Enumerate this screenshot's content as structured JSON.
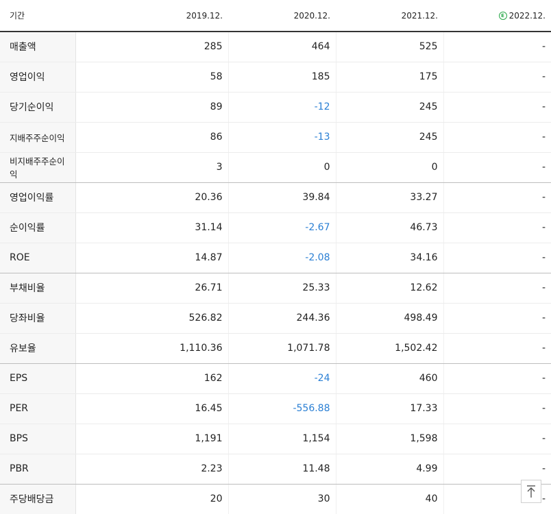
{
  "header": {
    "label": "기간",
    "years": [
      "2019.12.",
      "2020.12.",
      "2021.12.",
      "2022.12."
    ],
    "estimate_badge": "E"
  },
  "colors": {
    "negative": "#2a7fd4",
    "estimate": "#2aa84a"
  },
  "rows": [
    {
      "label": "매출액",
      "values": [
        "285",
        "464",
        "525",
        "-"
      ]
    },
    {
      "label": "영업이익",
      "values": [
        "58",
        "185",
        "175",
        "-"
      ]
    },
    {
      "label": "당기순이익",
      "values": [
        "89",
        "-12",
        "245",
        "-"
      ]
    },
    {
      "label": "지배주주순이익",
      "values": [
        "86",
        "-13",
        "245",
        "-"
      ]
    },
    {
      "label": "비지배주주순이익",
      "values": [
        "3",
        "0",
        "0",
        "-"
      ]
    },
    {
      "label": "영업이익률",
      "values": [
        "20.36",
        "39.84",
        "33.27",
        "-"
      ]
    },
    {
      "label": "순이익률",
      "values": [
        "31.14",
        "-2.67",
        "46.73",
        "-"
      ]
    },
    {
      "label": "ROE",
      "values": [
        "14.87",
        "-2.08",
        "34.16",
        "-"
      ]
    },
    {
      "label": "부채비율",
      "values": [
        "26.71",
        "25.33",
        "12.62",
        "-"
      ]
    },
    {
      "label": "당좌비율",
      "values": [
        "526.82",
        "244.36",
        "498.49",
        "-"
      ]
    },
    {
      "label": "유보율",
      "values": [
        "1,110.36",
        "1,071.78",
        "1,502.42",
        "-"
      ]
    },
    {
      "label": "EPS",
      "values": [
        "162",
        "-24",
        "460",
        "-"
      ]
    },
    {
      "label": "PER",
      "values": [
        "16.45",
        "-556.88",
        "17.33",
        "-"
      ]
    },
    {
      "label": "BPS",
      "values": [
        "1,191",
        "1,154",
        "1,598",
        "-"
      ]
    },
    {
      "label": "PBR",
      "values": [
        "2.23",
        "11.48",
        "4.99",
        "-"
      ]
    },
    {
      "label": "주당배당금",
      "values": [
        "20",
        "30",
        "40",
        "-"
      ]
    }
  ],
  "scroll_top_icon": "arrow-up-to-line-icon"
}
